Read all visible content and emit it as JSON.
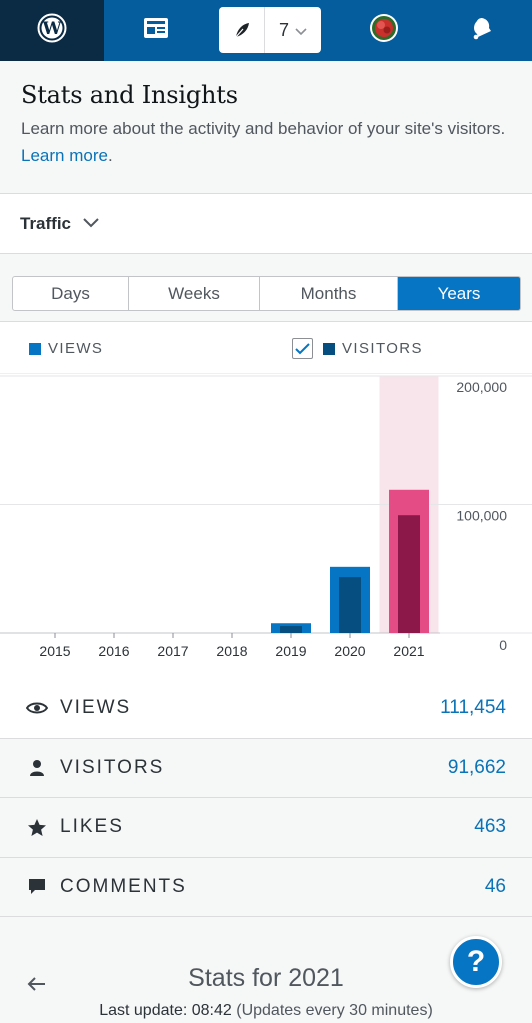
{
  "colors": {
    "views": "#0675c4",
    "visitors": "#064e80",
    "highlight_views": "#e34c84",
    "highlight_visitors": "#8c1749",
    "highlight_band": "#f8e5ec",
    "link": "#0a73b8"
  },
  "masterbar": {
    "items": [
      {
        "icon": "wordpress-icon"
      },
      {
        "icon": "reader-icon"
      },
      {
        "icon": "write-icon"
      },
      {
        "icon": "avatar"
      },
      {
        "icon": "notifications-icon"
      }
    ],
    "site_count": "7"
  },
  "header": {
    "title": "Stats and Insights",
    "description": "Learn more about the activity and behavior of your site's visitors.",
    "learn_more": "Learn more",
    "learn_more_suffix": "."
  },
  "module": {
    "label": "Traffic"
  },
  "tabs": [
    {
      "label": "Days",
      "active": false
    },
    {
      "label": "Weeks",
      "active": false
    },
    {
      "label": "Months",
      "active": false
    },
    {
      "label": "Years",
      "active": true
    }
  ],
  "legend": {
    "views": "VIEWS",
    "visitors": "VISITORS",
    "visitors_checked": true
  },
  "chart_data": {
    "type": "bar",
    "categories": [
      "2015",
      "2016",
      "2017",
      "2018",
      "2019",
      "2020",
      "2021"
    ],
    "series": [
      {
        "name": "VIEWS",
        "values": [
          0,
          0,
          0,
          0,
          7600,
          51500,
          111454
        ]
      },
      {
        "name": "VISITORS",
        "values": [
          0,
          0,
          0,
          0,
          5400,
          43500,
          91662
        ]
      }
    ],
    "y_ticks": [
      "200,000",
      "100,000",
      "0"
    ],
    "y_tick_values": [
      200000,
      100000,
      0
    ],
    "ylim": [
      0,
      200000
    ],
    "highlighted": "2021",
    "grid": true,
    "y_axis_side": "right"
  },
  "stats": [
    {
      "icon": "eye-icon",
      "label": "VIEWS",
      "value": "111,454"
    },
    {
      "icon": "person-icon",
      "label": "VISITORS",
      "value": "91,662"
    },
    {
      "icon": "star-icon",
      "label": "LIKES",
      "value": "463"
    },
    {
      "icon": "comment-icon",
      "label": "COMMENTS",
      "value": "46"
    }
  ],
  "footer": {
    "title": "Stats for 2021",
    "update_label": "Last update: 08:42",
    "update_note": "(Updates every 30 minutes)",
    "help": "?"
  }
}
